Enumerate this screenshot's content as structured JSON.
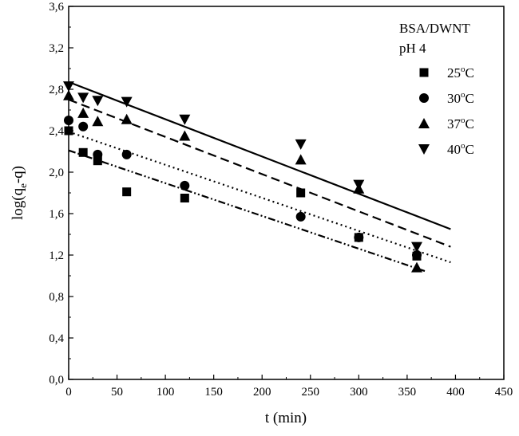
{
  "chart_data": {
    "type": "scatter",
    "xlabel": "t (min)",
    "ylabel_main": "log(q",
    "ylabel_sub": "e",
    "ylabel_tail": "-q)",
    "xlim": [
      0,
      450
    ],
    "ylim": [
      0.0,
      3.6
    ],
    "x_ticks": [
      0,
      50,
      100,
      150,
      200,
      250,
      300,
      350,
      400,
      450
    ],
    "x_tick_labels": [
      "0",
      "50",
      "100",
      "150",
      "200",
      "250",
      "300",
      "350",
      "400",
      "450"
    ],
    "y_ticks": [
      0.0,
      0.4,
      0.8,
      1.2,
      1.6,
      2.0,
      2.4,
      2.8,
      3.2,
      3.6
    ],
    "y_tick_labels": [
      "0,0",
      "0,4",
      "0,8",
      "1,2",
      "1,6",
      "2,0",
      "2,4",
      "2,8",
      "3,2",
      "3,6"
    ],
    "grid": false,
    "legend_position": "top-right",
    "legend_title_line1": "BSA/DWNT",
    "legend_title_line2": "pH 4",
    "series": [
      {
        "name": "25",
        "marker": "square",
        "points": [
          [
            0,
            2.4
          ],
          [
            15,
            2.19
          ],
          [
            30,
            2.11
          ],
          [
            60,
            1.81
          ],
          [
            120,
            1.75
          ],
          [
            240,
            1.8
          ],
          [
            300,
            1.37
          ],
          [
            360,
            1.19
          ]
        ],
        "fit": {
          "x": [
            0,
            370
          ],
          "y": [
            2.21,
            1.04
          ],
          "dash": "dashdotdot"
        }
      },
      {
        "name": "30",
        "marker": "circle",
        "points": [
          [
            0,
            2.5
          ],
          [
            15,
            2.44
          ],
          [
            30,
            2.17
          ],
          [
            60,
            2.17
          ],
          [
            120,
            1.87
          ],
          [
            240,
            1.57
          ],
          [
            300,
            1.37
          ],
          [
            360,
            1.2
          ]
        ],
        "fit": {
          "x": [
            0,
            395
          ],
          "y": [
            2.39,
            1.13
          ],
          "dash": "dot"
        }
      },
      {
        "name": "37",
        "marker": "triangle-up",
        "points": [
          [
            0,
            2.74
          ],
          [
            15,
            2.57
          ],
          [
            30,
            2.49
          ],
          [
            60,
            2.51
          ],
          [
            120,
            2.35
          ],
          [
            240,
            2.12
          ],
          [
            300,
            1.84
          ],
          [
            360,
            1.08
          ]
        ],
        "fit": {
          "x": [
            0,
            395
          ],
          "y": [
            2.7,
            1.28
          ],
          "dash": "dash"
        }
      },
      {
        "name": "40",
        "marker": "triangle-down",
        "points": [
          [
            0,
            2.83
          ],
          [
            15,
            2.72
          ],
          [
            30,
            2.69
          ],
          [
            60,
            2.68
          ],
          [
            120,
            2.51
          ],
          [
            240,
            2.27
          ],
          [
            300,
            1.88
          ],
          [
            360,
            1.28
          ]
        ],
        "fit": {
          "x": [
            0,
            395
          ],
          "y": [
            2.87,
            1.45
          ],
          "dash": "solid"
        }
      }
    ],
    "degree_symbol": "o",
    "unit_suffix": "C"
  }
}
